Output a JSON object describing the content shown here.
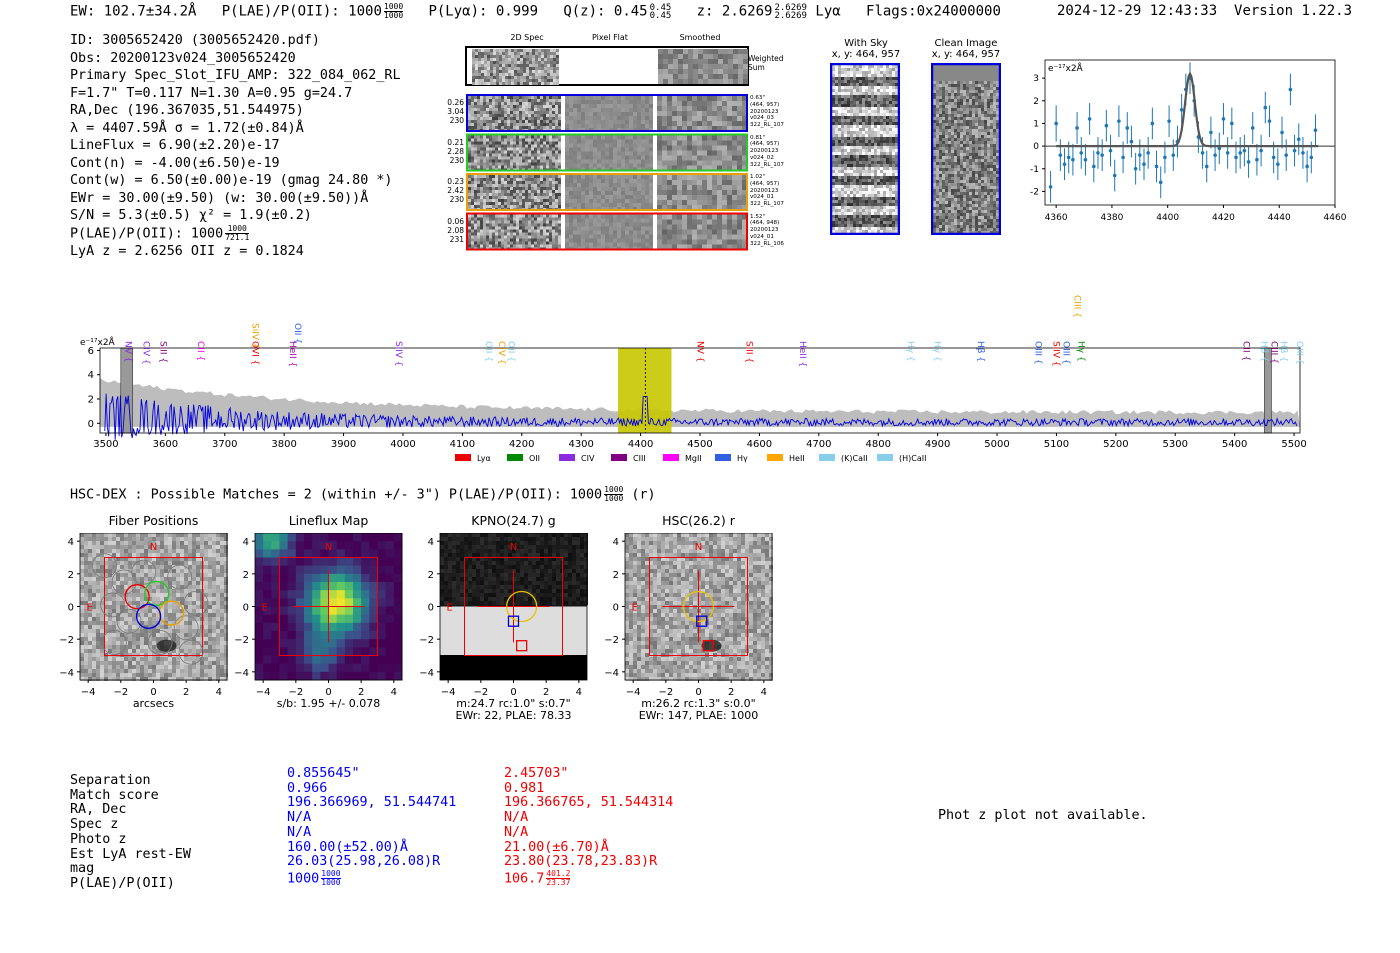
{
  "header": {
    "ew": "EW: 102.7±34.2Å",
    "plae_label": "P(LAE)/P(OII): 1000",
    "plae_frac_top": "1000",
    "plae_frac_bot": "1000",
    "plya": "P(Lyα): 0.999",
    "qz": "Q(z): 0.45",
    "qz_top": "0.45",
    "qz_bot": "0.45",
    "z": "z: 2.6269",
    "z_top": "2.6269",
    "z_bot": "2.6269",
    "line": "Lyα",
    "flags": "Flags:0x24000000",
    "datetime": "2024-12-29 12:43:33",
    "version": "Version 1.22.3"
  },
  "info": {
    "id": "ID: 3005652420 (3005652420.pdf)",
    "obs": "Obs: 20200123v024_3005652420",
    "primary": "Primary Spec_Slot_IFU_AMP: 322_084_062_RL",
    "params": "F=1.7\"  T=0.117  N=1.30  A=0.95  g=24.7",
    "radec": "RA,Dec (196.367035,51.544975)",
    "lambda": "λ = 4407.59Å  σ = 1.72(±0.84)Å",
    "lineflux": "LineFlux = 6.90(±2.20)e-17",
    "contn": "Cont(n) = -4.00(±6.50)e-19",
    "contw": "Cont(w) = 6.50(±0.00)e-19 (gmag 24.80 *)",
    "ewr": "EWr = 30.00(±9.50) (w: 30.00(±9.50))Å",
    "sn": "S/N = 5.3(±0.5)  χ² = 1.9(±0.2)",
    "plae": "P(LAE)/P(OII): 1000",
    "plae_top": "1000",
    "plae_bot": "721.1",
    "lyaz": "LyA z = 2.6256   OII z = 0.1824"
  },
  "cutouts": {
    "col_2d": "2D Spec",
    "col_flat": "Pixel Flat",
    "col_smooth": "Smoothed",
    "weighted": "Weighted Sum",
    "rows": [
      {
        "left": [
          "0.26",
          "3.04",
          "230"
        ],
        "right": [
          "0.63\"",
          "(464, 957)",
          "20200123",
          "v024_03",
          "322_RL_107"
        ],
        "color": "#0000dd"
      },
      {
        "left": [
          "0.21",
          "2.28",
          "230"
        ],
        "right": [
          "0.81\"",
          "(464, 957)",
          "20200123",
          "v024_02",
          "322_RL_107"
        ],
        "color": "#22cc22"
      },
      {
        "left": [
          "0.23",
          "2.42",
          "230"
        ],
        "right": [
          "1.02\"",
          "(464, 957)",
          "20200123",
          "v024_01",
          "322_RL_107"
        ],
        "color": "#e8a000"
      },
      {
        "left": [
          "0.06",
          "2.08",
          "231"
        ],
        "right": [
          "1.52\"",
          "(464, 948)",
          "20200123",
          "v024_01",
          "322_RL_106"
        ],
        "color": "#ee0000"
      }
    ]
  },
  "sky": {
    "with_sky": "With Sky",
    "with_sky_xy": "x, y: 464, 957",
    "clean": "Clean Image",
    "clean_xy": "x, y: 464, 957"
  },
  "zoom_chart": {
    "type": "scatter",
    "ylabel": "e⁻¹⁷x2Å",
    "xlim": [
      4356,
      4460
    ],
    "ylim": [
      -2.6,
      3.8
    ],
    "xticks": [
      4360,
      4380,
      4400,
      4420,
      4440,
      4460
    ],
    "yticks": [
      -2,
      -1,
      0,
      1,
      2,
      3
    ],
    "points": [
      {
        "x": 4358,
        "y": -1.8,
        "e": 0.7
      },
      {
        "x": 4360,
        "y": 1.0,
        "e": 0.8
      },
      {
        "x": 4361.5,
        "y": -0.4,
        "e": 0.7
      },
      {
        "x": 4363,
        "y": -0.8,
        "e": 0.7
      },
      {
        "x": 4364.5,
        "y": -0.5,
        "e": 0.7
      },
      {
        "x": 4366,
        "y": -0.6,
        "e": 0.7
      },
      {
        "x": 4367.5,
        "y": 0.8,
        "e": 0.7
      },
      {
        "x": 4369,
        "y": -0.3,
        "e": 0.7
      },
      {
        "x": 4370.5,
        "y": -0.6,
        "e": 0.7
      },
      {
        "x": 4372,
        "y": 1.2,
        "e": 0.7
      },
      {
        "x": 4373.5,
        "y": -0.9,
        "e": 0.7
      },
      {
        "x": 4375,
        "y": -0.3,
        "e": 0.7
      },
      {
        "x": 4376.5,
        "y": -0.4,
        "e": 0.7
      },
      {
        "x": 4378,
        "y": 0.9,
        "e": 0.7
      },
      {
        "x": 4379.5,
        "y": -0.2,
        "e": 0.7
      },
      {
        "x": 4381,
        "y": -1.3,
        "e": 0.7
      },
      {
        "x": 4382.5,
        "y": 1.1,
        "e": 0.7
      },
      {
        "x": 4384,
        "y": -0.5,
        "e": 0.7
      },
      {
        "x": 4385.5,
        "y": 0.8,
        "e": 0.7
      },
      {
        "x": 4387,
        "y": 0.2,
        "e": 0.7
      },
      {
        "x": 4388.5,
        "y": -1.0,
        "e": 0.7
      },
      {
        "x": 4390,
        "y": -0.4,
        "e": 0.7
      },
      {
        "x": 4391.5,
        "y": -0.8,
        "e": 0.7
      },
      {
        "x": 4393,
        "y": -0.3,
        "e": 0.7
      },
      {
        "x": 4394.5,
        "y": 1.0,
        "e": 0.7
      },
      {
        "x": 4396,
        "y": -0.9,
        "e": 0.7
      },
      {
        "x": 4397.5,
        "y": -1.6,
        "e": 0.7
      },
      {
        "x": 4399,
        "y": -0.5,
        "e": 0.7
      },
      {
        "x": 4400.5,
        "y": 1.1,
        "e": 0.7
      },
      {
        "x": 4402,
        "y": -0.4,
        "e": 0.7
      },
      {
        "x": 4403.5,
        "y": 0.2,
        "e": 0.7
      },
      {
        "x": 4405,
        "y": 1.6,
        "e": 0.7
      },
      {
        "x": 4406.5,
        "y": 2.5,
        "e": 0.7
      },
      {
        "x": 4408,
        "y": 3.0,
        "e": 0.7
      },
      {
        "x": 4409.5,
        "y": 2.0,
        "e": 0.7
      },
      {
        "x": 4411,
        "y": 0.4,
        "e": 0.7
      },
      {
        "x": 4412.5,
        "y": -0.3,
        "e": 0.7
      },
      {
        "x": 4414,
        "y": -0.9,
        "e": 0.7
      },
      {
        "x": 4415.5,
        "y": 0.6,
        "e": 0.7
      },
      {
        "x": 4417,
        "y": -0.4,
        "e": 0.7
      },
      {
        "x": 4418.5,
        "y": -0.1,
        "e": 0.7
      },
      {
        "x": 4420,
        "y": 1.2,
        "e": 0.7
      },
      {
        "x": 4421.5,
        "y": -0.3,
        "e": 0.7
      },
      {
        "x": 4423,
        "y": 1.0,
        "e": 0.7
      },
      {
        "x": 4424.5,
        "y": -0.5,
        "e": 0.7
      },
      {
        "x": 4426,
        "y": -0.3,
        "e": 0.7
      },
      {
        "x": 4427.5,
        "y": -0.2,
        "e": 0.7
      },
      {
        "x": 4429,
        "y": -0.7,
        "e": 0.7
      },
      {
        "x": 4430.5,
        "y": 0.8,
        "e": 0.7
      },
      {
        "x": 4432,
        "y": -0.6,
        "e": 0.7
      },
      {
        "x": 4433.5,
        "y": -0.2,
        "e": 0.7
      },
      {
        "x": 4435,
        "y": 1.7,
        "e": 0.7
      },
      {
        "x": 4436.5,
        "y": 1.1,
        "e": 0.7
      },
      {
        "x": 4438,
        "y": -0.5,
        "e": 0.7
      },
      {
        "x": 4439.5,
        "y": -0.8,
        "e": 0.7
      },
      {
        "x": 4441,
        "y": 0.6,
        "e": 0.7
      },
      {
        "x": 4442.5,
        "y": -0.4,
        "e": 0.7
      },
      {
        "x": 4444,
        "y": 2.5,
        "e": 0.7
      },
      {
        "x": 4445.5,
        "y": -0.2,
        "e": 0.7
      },
      {
        "x": 4447,
        "y": 0.3,
        "e": 0.7
      },
      {
        "x": 4448.5,
        "y": -0.3,
        "e": 0.7
      },
      {
        "x": 4450,
        "y": -0.9,
        "e": 0.7
      },
      {
        "x": 4451.5,
        "y": -0.5,
        "e": 0.7
      },
      {
        "x": 4453,
        "y": 0.7,
        "e": 0.7
      }
    ],
    "fit_center": 4408,
    "fit_amp": 3.2,
    "fit_sigma": 1.72
  },
  "spectrum": {
    "type": "line",
    "ylabel": "e⁻¹⁷x2Å",
    "xlim": [
      3490,
      5510
    ],
    "ylim": [
      -0.8,
      6.2
    ],
    "xticks": [
      3500,
      3600,
      3700,
      3800,
      3900,
      4000,
      4100,
      4200,
      4300,
      4400,
      4500,
      4600,
      4700,
      4800,
      4900,
      5000,
      5100,
      5200,
      5300,
      5400,
      5500
    ],
    "yticks": [
      0,
      2,
      4,
      6
    ],
    "highlight_band": [
      4362,
      4452
    ],
    "line_center": 4408,
    "masked": [
      [
        3525,
        3545
      ],
      [
        5450,
        5462
      ]
    ],
    "legend": [
      {
        "label": "Lyα",
        "color": "#ee0000"
      },
      {
        "label": "OII",
        "color": "#008800"
      },
      {
        "label": "CIV",
        "color": "#8a2be2"
      },
      {
        "label": "CIII",
        "color": "#800080"
      },
      {
        "label": "MgII",
        "color": "#ff00ff"
      },
      {
        "label": "Hγ",
        "color": "#3060e0"
      },
      {
        "label": "HeII",
        "color": "#ffa500"
      },
      {
        "label": "(K)CaII",
        "color": "#87ceeb"
      },
      {
        "label": "(H)CaII",
        "color": "#87ceeb"
      }
    ],
    "line_labels": [
      {
        "x": 3533,
        "label": "NV",
        "color": "#8a2be2",
        "level": 2
      },
      {
        "x": 3563,
        "label": "CIV",
        "color": "#8a2be2",
        "level": 2
      },
      {
        "x": 3592,
        "label": "SiII",
        "color": "#800080",
        "level": 2
      },
      {
        "x": 3655,
        "label": "CII",
        "color": "#ee00ee",
        "level": 2
      },
      {
        "x": 3747,
        "label": "OVI",
        "color": "#ee0000",
        "level": 2
      },
      {
        "x": 3747,
        "label": "SiIV",
        "color": "#e8a000",
        "level": 1
      },
      {
        "x": 3810,
        "label": "HeII",
        "color": "#b000b0",
        "level": 2
      },
      {
        "x": 3818,
        "label": "OII",
        "color": "#3060e0",
        "level": 1
      },
      {
        "x": 3988,
        "label": "SiIV",
        "color": "#8a2be2",
        "level": 2
      },
      {
        "x": 4140,
        "label": "OII",
        "color": "#87ceeb",
        "level": 2
      },
      {
        "x": 4162,
        "label": "CIV",
        "color": "#e8a000",
        "level": 2
      },
      {
        "x": 4178,
        "label": "OII",
        "color": "#87ceeb",
        "level": 2
      },
      {
        "x": 4496,
        "label": "NV",
        "color": "#ee0000",
        "level": 2
      },
      {
        "x": 4578,
        "label": "SiII",
        "color": "#ee0000",
        "level": 2
      },
      {
        "x": 4668,
        "label": "HeII",
        "color": "#8a2be2",
        "level": 2
      },
      {
        "x": 4850,
        "label": "Hγ",
        "color": "#87ceeb",
        "level": 2
      },
      {
        "x": 4895,
        "label": "Hγ",
        "color": "#87ceeb",
        "level": 2
      },
      {
        "x": 4968,
        "label": "Hβ",
        "color": "#3060e0",
        "level": 2
      },
      {
        "x": 5065,
        "label": "OIII",
        "color": "#3060e0",
        "level": 2
      },
      {
        "x": 5095,
        "label": "SiIV",
        "color": "#ee0000",
        "level": 2
      },
      {
        "x": 5112,
        "label": "OIII",
        "color": "#3060e0",
        "level": 2
      },
      {
        "x": 5130,
        "label": "CIII",
        "color": "#e8a000",
        "level": 0
      },
      {
        "x": 5137,
        "label": "Hγ",
        "color": "#008800",
        "level": 2
      },
      {
        "x": 5415,
        "label": "CII",
        "color": "#800080",
        "level": 2
      },
      {
        "x": 5445,
        "label": "Hβ",
        "color": "#87ceeb",
        "level": 2
      },
      {
        "x": 5462,
        "label": "CIII",
        "color": "#800080",
        "level": 2
      },
      {
        "x": 5478,
        "label": "Hβ",
        "color": "#87ceeb",
        "level": 2
      },
      {
        "x": 5505,
        "label": "OIII",
        "color": "#87ceeb",
        "level": 2
      }
    ]
  },
  "hsc": {
    "title": "HSC-DEX : Possible Matches = 2 (within +/- 3\")  P(LAE)/P(OII): 1000",
    "title_top": "1000",
    "title_bot": "1000",
    "title_suffix": "(r)",
    "panels": [
      {
        "title": "Fiber Positions",
        "caption": [
          "arcsecs"
        ]
      },
      {
        "title": "Lineflux Map",
        "caption": [
          "s/b: 1.95 +/- 0.078"
        ]
      },
      {
        "title": "KPNO(24.7) g",
        "caption": [
          "m:24.7 rc:1.0\"  s:0.7\"",
          "EWr: 22, PLAE: 78.33"
        ]
      },
      {
        "title": "HSC(26.2) r",
        "caption": [
          "m:26.2 rc:1.3\"  s:0.0\"",
          "EWr: 147, PLAE: 1000"
        ]
      }
    ],
    "ticks": [
      "4",
      "2",
      "0",
      "−2",
      "−4"
    ],
    "xticks": [
      "−4",
      "−2",
      "0",
      "2",
      "4"
    ],
    "north": "N",
    "east": "E"
  },
  "table": {
    "labels": [
      "Separation",
      "Match score",
      "RA, Dec",
      "Spec z",
      "Photo z",
      "Est LyA rest-EW",
      "mag",
      "P(LAE)/P(OII)"
    ],
    "blue": [
      "0.855645\"",
      "0.966",
      "196.366969, 51.544741",
      "N/A",
      "N/A",
      "160.00(±52.00)Å",
      "26.03(25.98,26.08)R",
      "1000"
    ],
    "blue_plae_top": "1000",
    "blue_plae_bot": "1000",
    "red": [
      "2.45703\"",
      "0.981",
      "196.366765, 51.544314",
      "N/A",
      "N/A",
      "21.00(±6.70)Å",
      "23.80(23.78,23.83)R",
      "106.7"
    ],
    "red_plae_top": "401.2",
    "red_plae_bot": "23.37",
    "phot_z": "Phot z plot not available."
  }
}
